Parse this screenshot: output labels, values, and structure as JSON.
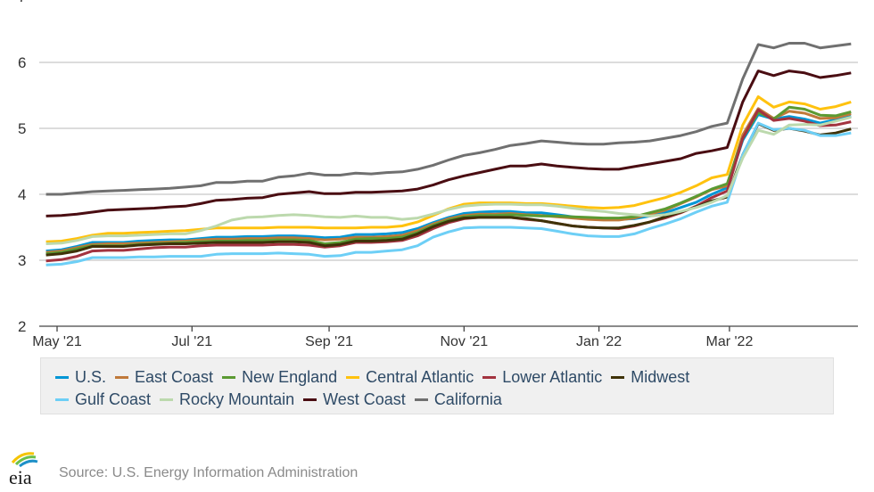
{
  "chart_data": {
    "type": "line",
    "title": "",
    "xlabel": "",
    "ylabel": "",
    "ylim": [
      2,
      7
    ],
    "yticks": [
      "2",
      "3",
      "4",
      "5",
      "6",
      "7"
    ],
    "xticks": [
      {
        "date": "2021-05-01",
        "label": "May '21"
      },
      {
        "date": "2021-07-01",
        "label": "Jul '21"
      },
      {
        "date": "2021-09-01",
        "label": "Sep '21"
      },
      {
        "date": "2021-11-01",
        "label": "Nov '21"
      },
      {
        "date": "2022-01-01",
        "label": "Jan '22"
      },
      {
        "date": "2022-03-01",
        "label": "Mar '22"
      }
    ],
    "grid": true,
    "legend_position": "bottom",
    "x": [
      "2021-04-26",
      "2021-05-03",
      "2021-05-10",
      "2021-05-17",
      "2021-05-24",
      "2021-05-31",
      "2021-06-07",
      "2021-06-14",
      "2021-06-21",
      "2021-06-28",
      "2021-07-05",
      "2021-07-12",
      "2021-07-19",
      "2021-07-26",
      "2021-08-02",
      "2021-08-09",
      "2021-08-16",
      "2021-08-23",
      "2021-08-30",
      "2021-09-06",
      "2021-09-13",
      "2021-09-20",
      "2021-09-27",
      "2021-10-04",
      "2021-10-11",
      "2021-10-18",
      "2021-10-25",
      "2021-11-01",
      "2021-11-08",
      "2021-11-15",
      "2021-11-22",
      "2021-11-29",
      "2021-12-06",
      "2021-12-13",
      "2021-12-20",
      "2021-12-27",
      "2022-01-03",
      "2022-01-10",
      "2022-01-17",
      "2022-01-24",
      "2022-01-31",
      "2022-02-07",
      "2022-02-14",
      "2022-02-21",
      "2022-02-28",
      "2022-03-07",
      "2022-03-14",
      "2022-03-21",
      "2022-03-28",
      "2022-04-04",
      "2022-04-11",
      "2022-04-18",
      "2022-04-25"
    ],
    "series": [
      {
        "name": "U.S.",
        "color": "#0096d6",
        "values": [
          3.14,
          3.16,
          3.21,
          3.27,
          3.27,
          3.27,
          3.29,
          3.3,
          3.31,
          3.31,
          3.33,
          3.35,
          3.35,
          3.36,
          3.36,
          3.37,
          3.37,
          3.36,
          3.34,
          3.35,
          3.39,
          3.39,
          3.4,
          3.42,
          3.48,
          3.57,
          3.65,
          3.71,
          3.73,
          3.74,
          3.74,
          3.72,
          3.72,
          3.69,
          3.66,
          3.64,
          3.63,
          3.62,
          3.63,
          3.67,
          3.72,
          3.8,
          3.88,
          4.0,
          4.1,
          4.82,
          5.21,
          5.14,
          5.18,
          5.14,
          5.08,
          5.13,
          5.18
        ]
      },
      {
        "name": "East Coast",
        "color": "#c0793a",
        "values": [
          3.12,
          3.14,
          3.19,
          3.24,
          3.25,
          3.25,
          3.26,
          3.27,
          3.28,
          3.29,
          3.31,
          3.32,
          3.32,
          3.33,
          3.33,
          3.34,
          3.34,
          3.33,
          3.31,
          3.32,
          3.35,
          3.35,
          3.36,
          3.38,
          3.45,
          3.55,
          3.63,
          3.68,
          3.7,
          3.7,
          3.71,
          3.69,
          3.68,
          3.66,
          3.64,
          3.62,
          3.61,
          3.61,
          3.64,
          3.7,
          3.76,
          3.86,
          3.96,
          4.07,
          4.13,
          4.9,
          5.3,
          5.15,
          5.26,
          5.23,
          5.15,
          5.16,
          5.22
        ]
      },
      {
        "name": "New England",
        "color": "#5b9a32",
        "values": [
          3.1,
          3.12,
          3.17,
          3.22,
          3.22,
          3.22,
          3.24,
          3.25,
          3.26,
          3.27,
          3.28,
          3.29,
          3.29,
          3.3,
          3.3,
          3.31,
          3.31,
          3.3,
          3.25,
          3.27,
          3.32,
          3.33,
          3.33,
          3.35,
          3.42,
          3.53,
          3.61,
          3.66,
          3.68,
          3.68,
          3.69,
          3.68,
          3.67,
          3.67,
          3.66,
          3.65,
          3.64,
          3.64,
          3.66,
          3.72,
          3.78,
          3.87,
          3.97,
          4.08,
          4.16,
          4.85,
          5.24,
          5.14,
          5.32,
          5.29,
          5.2,
          5.19,
          5.25
        ]
      },
      {
        "name": "Central Atlantic",
        "color": "#ffc20e",
        "values": [
          3.28,
          3.29,
          3.33,
          3.38,
          3.41,
          3.41,
          3.42,
          3.43,
          3.44,
          3.45,
          3.47,
          3.49,
          3.49,
          3.49,
          3.49,
          3.5,
          3.5,
          3.5,
          3.49,
          3.49,
          3.49,
          3.5,
          3.5,
          3.52,
          3.58,
          3.68,
          3.78,
          3.85,
          3.87,
          3.87,
          3.87,
          3.86,
          3.86,
          3.84,
          3.82,
          3.8,
          3.79,
          3.8,
          3.83,
          3.89,
          3.95,
          4.03,
          4.13,
          4.25,
          4.3,
          5.05,
          5.48,
          5.32,
          5.4,
          5.37,
          5.29,
          5.33,
          5.4
        ]
      },
      {
        "name": "Lower Atlantic",
        "color": "#a3333f",
        "values": [
          2.99,
          3.01,
          3.06,
          3.14,
          3.15,
          3.15,
          3.17,
          3.19,
          3.2,
          3.2,
          3.22,
          3.23,
          3.23,
          3.23,
          3.23,
          3.24,
          3.24,
          3.23,
          3.2,
          3.22,
          3.27,
          3.27,
          3.28,
          3.3,
          3.37,
          3.48,
          3.57,
          3.63,
          3.65,
          3.65,
          3.65,
          3.62,
          3.6,
          3.56,
          3.52,
          3.5,
          3.49,
          3.48,
          3.52,
          3.58,
          3.64,
          3.72,
          3.82,
          3.95,
          4.05,
          4.85,
          5.28,
          5.12,
          5.15,
          5.11,
          5.04,
          5.05,
          5.1
        ]
      },
      {
        "name": "Midwest",
        "color": "#3f3208",
        "values": [
          3.08,
          3.1,
          3.14,
          3.21,
          3.21,
          3.21,
          3.23,
          3.24,
          3.25,
          3.25,
          3.26,
          3.27,
          3.27,
          3.27,
          3.27,
          3.28,
          3.28,
          3.27,
          3.22,
          3.24,
          3.29,
          3.29,
          3.3,
          3.32,
          3.4,
          3.51,
          3.59,
          3.64,
          3.65,
          3.65,
          3.65,
          3.63,
          3.6,
          3.56,
          3.52,
          3.5,
          3.49,
          3.49,
          3.53,
          3.58,
          3.66,
          3.73,
          3.81,
          3.9,
          3.96,
          4.6,
          5.07,
          4.97,
          5.0,
          4.96,
          4.9,
          4.93,
          4.99
        ]
      },
      {
        "name": "Gulf Coast",
        "color": "#6dcff6",
        "values": [
          2.93,
          2.94,
          2.98,
          3.04,
          3.04,
          3.04,
          3.05,
          3.05,
          3.06,
          3.06,
          3.06,
          3.09,
          3.1,
          3.1,
          3.1,
          3.11,
          3.1,
          3.09,
          3.06,
          3.07,
          3.12,
          3.12,
          3.14,
          3.16,
          3.22,
          3.35,
          3.43,
          3.49,
          3.5,
          3.5,
          3.5,
          3.49,
          3.48,
          3.44,
          3.4,
          3.37,
          3.36,
          3.36,
          3.4,
          3.48,
          3.55,
          3.63,
          3.73,
          3.82,
          3.88,
          4.6,
          5.08,
          4.98,
          5.0,
          4.97,
          4.89,
          4.89,
          4.93
        ]
      },
      {
        "name": "Rocky Mountain",
        "color": "#bcd9ad",
        "values": [
          3.25,
          3.26,
          3.3,
          3.36,
          3.37,
          3.37,
          3.38,
          3.39,
          3.4,
          3.4,
          3.45,
          3.52,
          3.61,
          3.65,
          3.66,
          3.68,
          3.69,
          3.68,
          3.66,
          3.65,
          3.67,
          3.65,
          3.65,
          3.62,
          3.64,
          3.7,
          3.77,
          3.82,
          3.84,
          3.85,
          3.85,
          3.84,
          3.84,
          3.82,
          3.79,
          3.76,
          3.74,
          3.71,
          3.69,
          3.67,
          3.69,
          3.74,
          3.8,
          3.88,
          3.98,
          4.55,
          4.97,
          4.91,
          5.05,
          5.06,
          5.05,
          5.11,
          5.17
        ]
      },
      {
        "name": "West Coast",
        "color": "#4a0d12",
        "values": [
          3.67,
          3.68,
          3.7,
          3.73,
          3.76,
          3.77,
          3.78,
          3.79,
          3.81,
          3.82,
          3.86,
          3.91,
          3.92,
          3.94,
          3.95,
          4.0,
          4.02,
          4.04,
          4.01,
          4.01,
          4.03,
          4.03,
          4.04,
          4.05,
          4.08,
          4.14,
          4.22,
          4.28,
          4.33,
          4.38,
          4.43,
          4.43,
          4.46,
          4.43,
          4.41,
          4.39,
          4.38,
          4.38,
          4.42,
          4.46,
          4.5,
          4.54,
          4.62,
          4.66,
          4.71,
          5.4,
          5.87,
          5.8,
          5.87,
          5.84,
          5.77,
          5.8,
          5.84
        ]
      },
      {
        "name": "California",
        "color": "#707070",
        "values": [
          4.0,
          4.0,
          4.02,
          4.04,
          4.05,
          4.06,
          4.07,
          4.08,
          4.09,
          4.11,
          4.13,
          4.18,
          4.18,
          4.2,
          4.2,
          4.26,
          4.28,
          4.32,
          4.29,
          4.29,
          4.32,
          4.31,
          4.33,
          4.34,
          4.38,
          4.44,
          4.52,
          4.59,
          4.63,
          4.68,
          4.74,
          4.77,
          4.81,
          4.79,
          4.77,
          4.76,
          4.76,
          4.78,
          4.79,
          4.81,
          4.85,
          4.89,
          4.95,
          5.03,
          5.08,
          5.75,
          6.27,
          6.22,
          6.29,
          6.29,
          6.22,
          6.25,
          6.28
        ]
      }
    ],
    "legend_rows": [
      [
        0,
        1,
        2,
        3,
        4,
        5
      ],
      [
        6,
        7,
        8,
        9
      ]
    ]
  },
  "footer": {
    "logo_text": "eia",
    "source": "Source: U.S. Energy Information Administration"
  }
}
